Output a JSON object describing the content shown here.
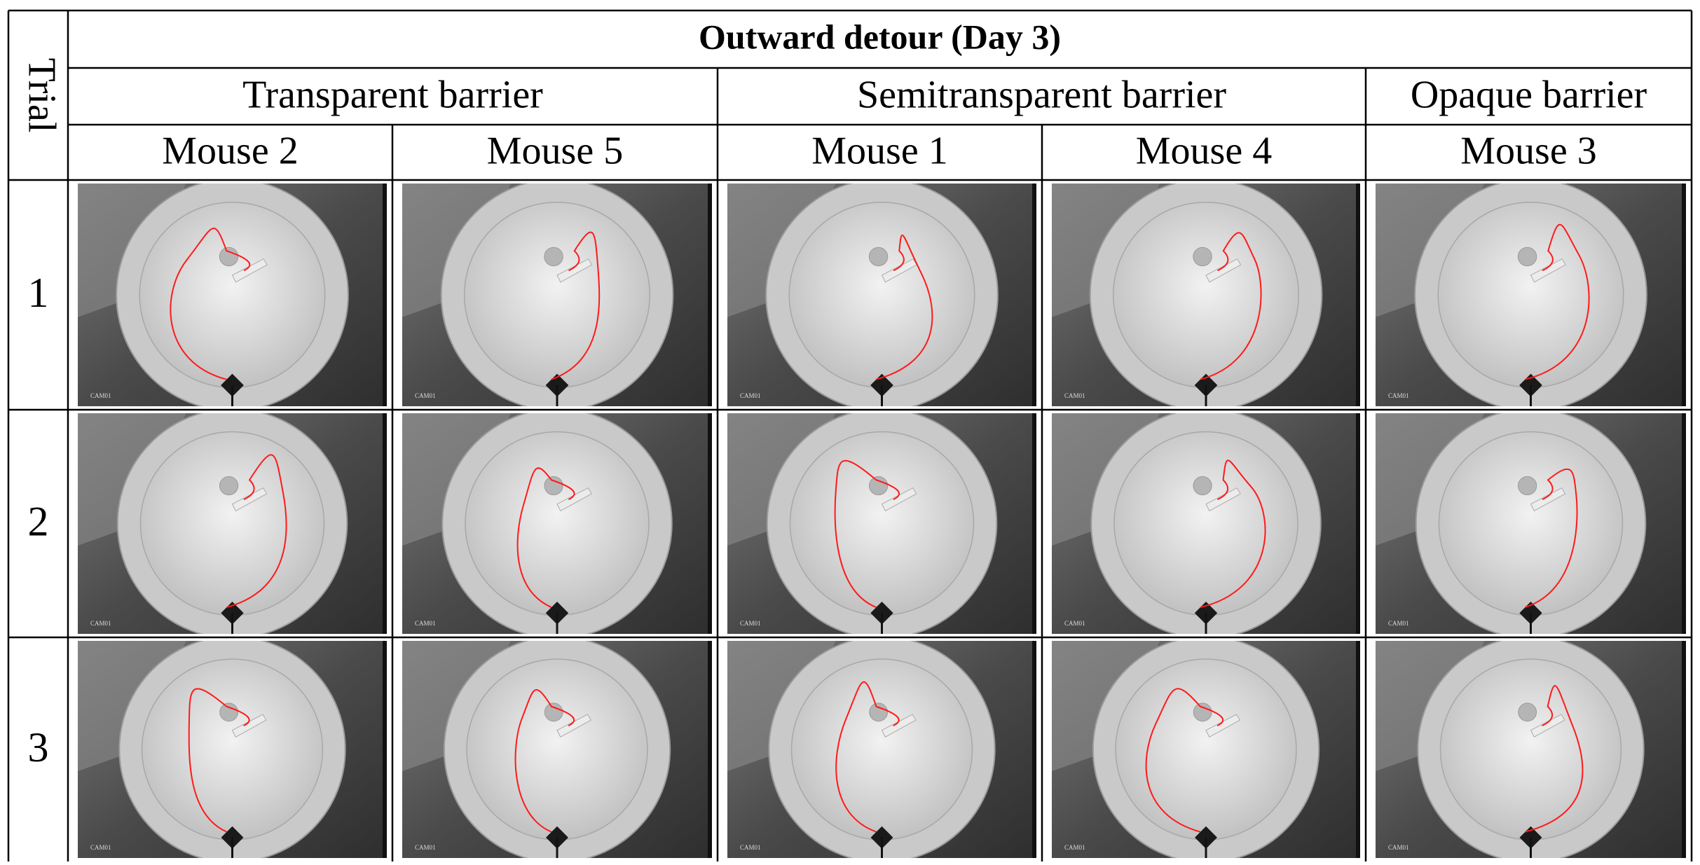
{
  "header": {
    "title": "Outward detour (Day 3)",
    "row_label": "Trial"
  },
  "groups": [
    {
      "label": "Transparent barrier",
      "mice": [
        "Mouse 2",
        "Mouse 5"
      ]
    },
    {
      "label": "Semitransparent barrier",
      "mice": [
        "Mouse 1",
        "Mouse 4"
      ]
    },
    {
      "label": "Opaque barrier",
      "mice": [
        "Mouse 3"
      ]
    }
  ],
  "trials": [
    "1",
    "2",
    "3"
  ],
  "cam_label": "CAM01"
}
